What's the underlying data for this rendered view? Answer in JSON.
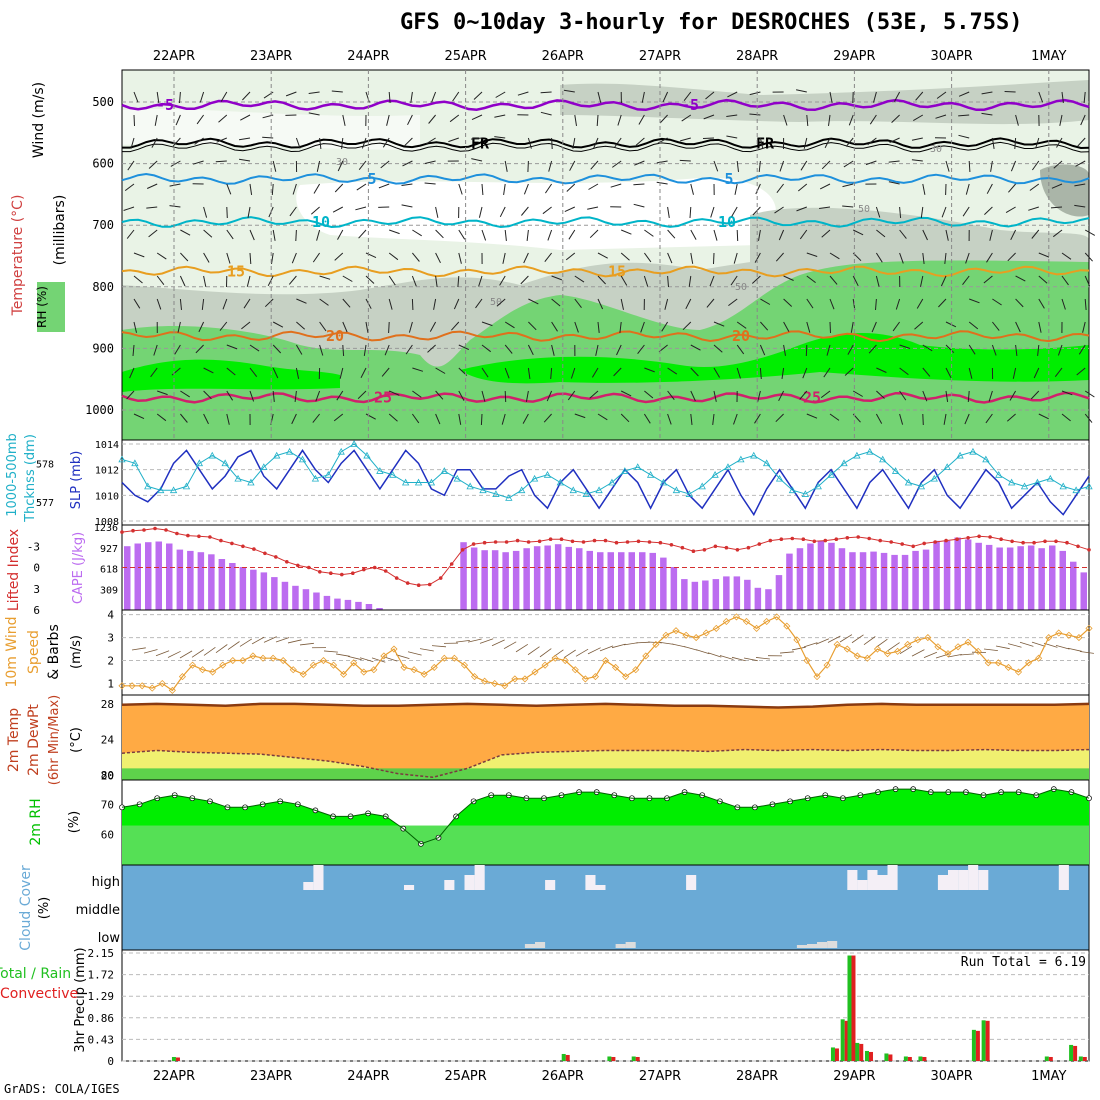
{
  "title": "GFS 0~10day 3-hourly for DESROCHES (53E, 5.75S)",
  "credit": "GrADS: COLA/IGES",
  "colors": {
    "rh_light": "#e9f3e6",
    "rh_mid": "#c6d1c4",
    "rh_gray": "#aab5a8",
    "rh_green": "#74d474",
    "rh_bright": "#00ee00",
    "temp_m5": "#9000c8",
    "temp_fr": "#000000",
    "temp_5": "#1e90dc",
    "temp_10": "#00b4c8",
    "temp_15": "#e89e20",
    "temp_20": "#e0701c",
    "temp_25": "#d0206c",
    "slp": "#2030c0",
    "thk": "#20b0c8",
    "cape_bar": "#bc6cf0",
    "li_line": "#d43030",
    "wind_line": "#e89e30",
    "temp_fill": "#ffaa44",
    "dew_fill": "#f0f070",
    "rh2_fill": "#00ee00",
    "rh2_dark": "#00c000",
    "cloud_bg": "#6aaad6",
    "cloud_bar": "#f4eff6",
    "precip_total": "#20c020",
    "precip_conv": "#e02020"
  },
  "dates": [
    "22APR",
    "23APR",
    "24APR",
    "25APR",
    "26APR",
    "27APR",
    "28APR",
    "29APR",
    "30APR",
    "1MAY"
  ],
  "panels": {
    "upper": {
      "label_wind": "Wind (m/s)",
      "label_temp": "Temperature (°C)",
      "label_rh": "RH (%)",
      "label_mb": "(millibars)",
      "ticks": [
        "500",
        "600",
        "700",
        "800",
        "900",
        "1000"
      ],
      "contour_labels": {
        "m5": "-5",
        "fr": "FR",
        "t5": "5",
        "t10": "10",
        "t15": "15",
        "t20": "20",
        "t25": "25",
        "rh30": "30",
        "rh50": "50"
      }
    },
    "thickness": {
      "label_a": "1000-500mb",
      "label_b": "Thcknss (dm)",
      "label_slp": "SLP (mb)",
      "left_ticks": [
        "578",
        "577"
      ],
      "right_ticks": [
        "1014",
        "1012",
        "1010",
        "1008"
      ]
    },
    "cape": {
      "label_li": "Lifted Index",
      "label_cape": "CAPE (J/kg)",
      "left_ticks": [
        "-3",
        "0",
        "3",
        "6"
      ],
      "right_ticks": [
        "1236",
        "927",
        "618",
        "309"
      ]
    },
    "wind10": {
      "label_a": "10m Wind",
      "label_b": "Speed",
      "label_c": "& Barbs",
      "label_unit": "(m/s)",
      "ticks": [
        "4",
        "3",
        "2",
        "1"
      ]
    },
    "temp2m": {
      "label_a": "2m Temp",
      "label_b": "2m DewPt",
      "label_c": "(6hr Min/Max)",
      "label_unit": "(°C)",
      "ticks": [
        "28",
        "24",
        "20",
        "80"
      ]
    },
    "rh2m": {
      "label_a": "2m RH",
      "label_unit": "(%)",
      "ticks": [
        "70",
        "60"
      ]
    },
    "cloud": {
      "label_a": "Cloud Cover",
      "label_unit": "(%)",
      "levels": [
        "high",
        "middle",
        "low"
      ]
    },
    "precip": {
      "label_a": "3hr Precip (mm)",
      "label_b": "Total / Rain",
      "label_c": "Convective",
      "ticks": [
        "2.15",
        "1.72",
        "1.29",
        "0.86",
        "0.43",
        "0"
      ],
      "run_total": "Run Total = 6.19"
    }
  },
  "chart_data": [
    {
      "type": "line",
      "title": "SLP (mb)",
      "ylim": [
        1008,
        1014
      ],
      "values": [
        1011,
        1010,
        1009.5,
        1010.5,
        1012.5,
        1013.5,
        1012,
        1010.5,
        1011.5,
        1013,
        1013.5,
        1011.5,
        1010.5,
        1012,
        1013.5,
        1012,
        1011,
        1012.5,
        1013.5,
        1012,
        1010.5,
        1012,
        1013.5,
        1012.5,
        1010.5,
        1010,
        1012,
        1012,
        1010.5,
        1010.5,
        1011.5,
        1012,
        1010,
        1009,
        1011,
        1012,
        1010.5,
        1009,
        1010.5,
        1012,
        1011,
        1009,
        1011,
        1012,
        1010,
        1009,
        1010.5,
        1012,
        1010,
        1008.5,
        1010.5,
        1012,
        1010.5,
        1009,
        1011,
        1012,
        1010.5,
        1009,
        1011,
        1012,
        1010.5,
        1009,
        1011,
        1012,
        1010,
        1009,
        1010.5,
        1012,
        1011,
        1009,
        1010,
        1011,
        1009.5,
        1008.5,
        1010,
        1011.5
      ]
    },
    {
      "type": "line",
      "title": "1000-500mb Thickness (dm)",
      "ylim": [
        576.5,
        578.5
      ],
      "values": [
        578.1,
        578,
        577.4,
        577.3,
        577.3,
        577.4,
        578,
        578.2,
        578,
        577.6,
        577.5,
        577.9,
        578.2,
        578.3,
        578.1,
        577.6,
        577.7,
        578.3,
        578.5,
        578.2,
        577.8,
        577.7,
        577.5,
        577.5,
        577.5,
        577.8,
        577.6,
        577.4,
        577.3,
        577.2,
        577.1,
        577.3,
        577.6,
        577.7,
        577.5,
        577.3,
        577.2,
        577.3,
        577.5,
        577.8,
        577.9,
        577.7,
        577.5,
        577.3,
        577.2,
        577.4,
        577.7,
        577.9,
        578.1,
        578.2,
        578,
        577.6,
        577.3,
        577.2,
        577.4,
        577.7,
        578,
        578.2,
        578.3,
        578.1,
        577.8,
        577.5,
        577.4,
        577.6,
        577.9,
        578.2,
        578.3,
        578.1,
        577.7,
        577.5,
        577.4,
        577.5,
        577.6,
        577.4,
        577.3,
        577.4
      ]
    },
    {
      "type": "bar",
      "title": "CAPE (J/kg)",
      "ylim": [
        0,
        1236
      ],
      "values": [
        950,
        990,
        1010,
        1020,
        990,
        900,
        880,
        860,
        830,
        760,
        700,
        640,
        600,
        560,
        490,
        420,
        360,
        310,
        260,
        210,
        170,
        150,
        120,
        90,
        30,
        0,
        0,
        0,
        0,
        0,
        0,
        0,
        1010,
        930,
        890,
        890,
        860,
        880,
        920,
        950,
        960,
        980,
        940,
        920,
        880,
        860,
        860,
        860,
        860,
        860,
        850,
        780,
        640,
        460,
        420,
        440,
        460,
        500,
        500,
        450,
        330,
        310,
        520,
        840,
        920,
        990,
        1030,
        1000,
        920,
        860,
        860,
        870,
        850,
        820,
        820,
        880,
        900,
        1030,
        1030,
        1080,
        1050,
        1000,
        970,
        930,
        930,
        950,
        960,
        920,
        960,
        880,
        720,
        560
      ]
    },
    {
      "type": "line",
      "title": "Lifted Index",
      "ylim": [
        6,
        -6
      ],
      "values": [
        -5,
        -5.2,
        -5.3,
        -5.5,
        -5.3,
        -4.8,
        -4.5,
        -4.4,
        -4.3,
        -3.8,
        -3.4,
        -3,
        -2.6,
        -2,
        -1.5,
        -0.8,
        -0.3,
        0,
        0.6,
        0.8,
        1,
        0.8,
        0.3,
        0,
        0.5,
        1.5,
        2.2,
        2.5,
        2.4,
        1.5,
        -0.5,
        -2.5,
        -3.3,
        -3.5,
        -3.6,
        -3.6,
        -3.8,
        -3.6,
        -3.7,
        -4,
        -4,
        -3.7,
        -3.6,
        -3.8,
        -3.8,
        -3.5,
        -3.6,
        -3.7,
        -3.6,
        -3.5,
        -3.2,
        -2.8,
        -2.3,
        -2.5,
        -3,
        -2.8,
        -2.5,
        -2.8,
        -3.3,
        -3.8,
        -4,
        -4.1,
        -4,
        -3.7,
        -3.8,
        -4,
        -4.2,
        -4.3,
        -4.1,
        -3.8,
        -3.6,
        -3.3,
        -3,
        -3.4,
        -3.6,
        -3.8,
        -4,
        -4.2,
        -4.4,
        -4.3,
        -4,
        -3.7,
        -3.5,
        -3.5,
        -3.7,
        -3.7,
        -3.5,
        -3,
        -2.5
      ]
    },
    {
      "type": "line",
      "title": "10m Wind Speed (m/s)",
      "ylim": [
        0.5,
        4.2
      ],
      "values": [
        0.9,
        0.9,
        0.9,
        0.8,
        1.0,
        0.7,
        1.3,
        1.8,
        1.6,
        1.5,
        1.8,
        2.0,
        2.0,
        2.2,
        2.1,
        2.1,
        2.0,
        1.6,
        1.4,
        1.8,
        2.0,
        1.8,
        1.4,
        1.9,
        1.5,
        1.6,
        2.2,
        2.5,
        1.7,
        1.6,
        1.4,
        1.7,
        2.1,
        2.1,
        1.8,
        1.3,
        1.1,
        1.0,
        0.9,
        1.2,
        1.2,
        1.5,
        1.8,
        2.1,
        2.0,
        1.6,
        1.2,
        1.3,
        2.0,
        1.7,
        1.3,
        1.6,
        2.2,
        2.7,
        3.1,
        3.3,
        3.1,
        3.0,
        3.2,
        3.4,
        3.7,
        3.9,
        3.7,
        3.4,
        3.7,
        3.9,
        3.5,
        2.9,
        2.0,
        1.3,
        1.8,
        2.7,
        2.5,
        2.2,
        2.1,
        2.5,
        2.3,
        2.4,
        2.7,
        2.9,
        3.0,
        2.6,
        2.3,
        2.6,
        2.8,
        2.4,
        1.9,
        1.9,
        1.7,
        1.5,
        1.9,
        2.1,
        3.0,
        3.2,
        3.1,
        3.0,
        3.4
      ]
    },
    {
      "type": "area",
      "title": "2m Temp / DewPt (°C)",
      "ylim": [
        19.5,
        29
      ],
      "series": [
        {
          "name": "2m Temp",
          "values": [
            27.9,
            28,
            27.9,
            27.8,
            28,
            28,
            27.9,
            27.8,
            27.8,
            27.9,
            28,
            27.9,
            27.8,
            27.9,
            28,
            27.9,
            27.8,
            27.8,
            27.7,
            27.6,
            27.7,
            27.9,
            28,
            27.9,
            27.9,
            27.9,
            27.9,
            27.9,
            28
          ]
        },
        {
          "name": "2m DewPt",
          "values": [
            22.5,
            22.8,
            22.6,
            22.5,
            22.4,
            22,
            21.6,
            21,
            20.2,
            19.8,
            20.8,
            22.3,
            22.6,
            22.7,
            22.8,
            22.8,
            22.8,
            22.7,
            22.9,
            22.8,
            22.9,
            22.8,
            22.9,
            22.8,
            22.8,
            22.9,
            22.8,
            22.8,
            22.9
          ]
        }
      ]
    },
    {
      "type": "area",
      "title": "2m RH (%)",
      "ylim": [
        50,
        78
      ],
      "values": [
        69,
        70,
        72,
        73,
        72,
        71,
        69,
        69,
        70,
        71,
        70,
        68,
        66,
        66,
        67,
        66,
        62,
        57,
        59,
        66,
        71,
        73,
        73,
        72,
        72,
        73,
        74,
        74,
        73,
        72,
        72,
        72,
        74,
        73,
        71,
        69,
        69,
        70,
        71,
        72,
        73,
        72,
        73,
        74,
        75,
        75,
        74,
        74,
        74,
        73,
        74,
        74,
        73,
        75,
        74,
        72
      ]
    },
    {
      "type": "bar",
      "title": "Cloud Cover (%) high",
      "values": [
        0,
        0,
        0,
        0,
        0,
        0,
        0,
        0,
        0,
        0,
        0,
        0,
        0,
        0,
        0,
        0,
        5,
        60,
        0,
        0,
        0,
        0,
        0,
        0,
        0,
        15,
        25,
        0,
        0,
        0,
        0,
        0,
        15,
        45,
        0,
        0,
        0,
        0,
        0,
        0,
        0,
        0,
        0,
        0,
        0,
        0,
        0,
        30,
        10,
        0,
        0,
        0,
        0,
        0,
        0,
        0,
        0,
        0,
        0,
        0,
        0,
        0,
        0,
        0,
        0,
        0,
        0,
        0,
        0,
        0,
        0,
        0,
        0,
        0,
        0,
        0,
        0,
        0,
        0,
        0,
        0,
        0,
        0,
        0,
        0,
        0,
        0,
        0,
        0,
        0,
        0,
        0,
        0,
        0,
        0,
        0,
        0,
        0
      ]
    },
    {
      "type": "bar",
      "title": "3hr Precip (mm)",
      "ylim": [
        0,
        2.15
      ],
      "categories": [
        "22APR",
        "25APR",
        "26APR",
        "26APR",
        "29APR",
        "29APR",
        "29APR",
        "29APR",
        "29APR",
        "29APR",
        "30APR",
        "30APR",
        "1MAY"
      ],
      "series": [
        {
          "name": "Total",
          "values": [
            0.08,
            0,
            0.14,
            0.09,
            0.27,
            0.83,
            2.1,
            0.36,
            0.2,
            0.15,
            0.62,
            0.81,
            0.32
          ]
        },
        {
          "name": "Convective",
          "values": [
            0.07,
            0,
            0.12,
            0.08,
            0.25,
            0.8,
            2.1,
            0.34,
            0.18,
            0.13,
            0.6,
            0.8,
            0.3
          ]
        }
      ]
    }
  ]
}
